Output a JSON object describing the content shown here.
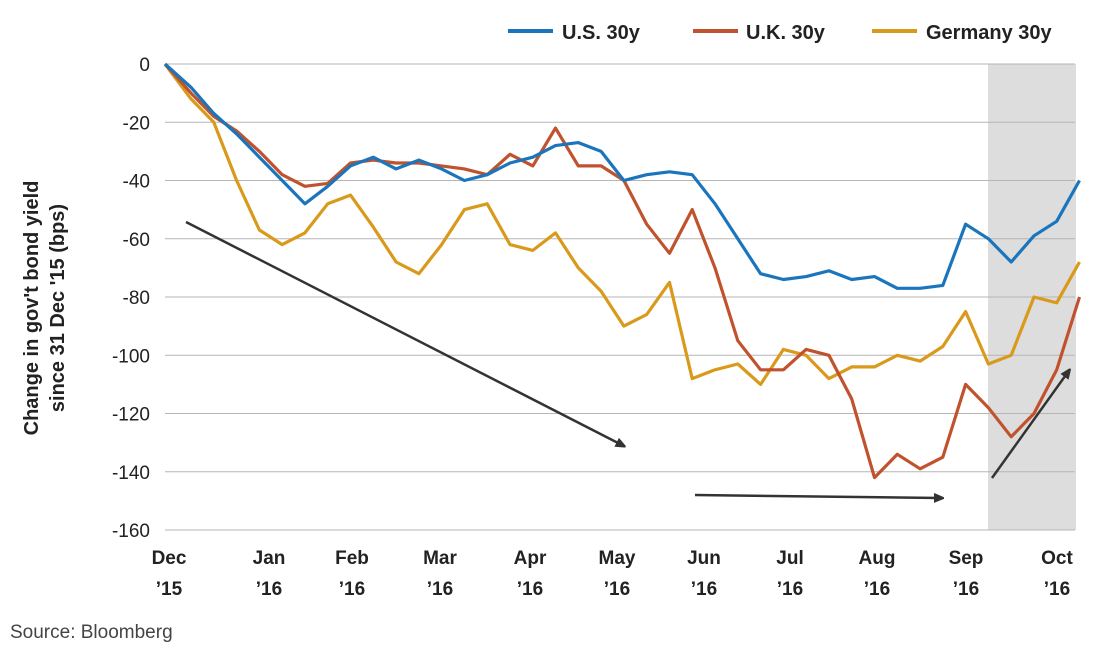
{
  "chart_data": {
    "type": "line",
    "ylabel": "Change in gov't bond yield since 31 Dec '15 (bps)",
    "ylim": [
      -160,
      0
    ],
    "yticks": [
      0,
      -20,
      -40,
      -60,
      -80,
      -100,
      -120,
      -140,
      -160
    ],
    "xticks": [
      {
        "month": "Dec",
        "year": "’15"
      },
      {
        "month": "Jan",
        "year": "’16"
      },
      {
        "month": "Feb",
        "year": "’16"
      },
      {
        "month": "Mar",
        "year": "’16"
      },
      {
        "month": "Apr",
        "year": "’16"
      },
      {
        "month": "May",
        "year": "’16"
      },
      {
        "month": "Jun",
        "year": "’16"
      },
      {
        "month": "Jul",
        "year": "’16"
      },
      {
        "month": "Aug",
        "year": "’16"
      },
      {
        "month": "Sep",
        "year": "’16"
      },
      {
        "month": "Oct",
        "year": "’16"
      }
    ],
    "x_dates": [
      "2015-12-31",
      "2016-01-08",
      "2016-01-15",
      "2016-01-22",
      "2016-01-29",
      "2016-02-05",
      "2016-02-12",
      "2016-02-19",
      "2016-02-26",
      "2016-03-04",
      "2016-03-11",
      "2016-03-18",
      "2016-03-25",
      "2016-04-01",
      "2016-04-08",
      "2016-04-15",
      "2016-04-22",
      "2016-04-29",
      "2016-05-06",
      "2016-05-13",
      "2016-05-20",
      "2016-05-27",
      "2016-06-03",
      "2016-06-10",
      "2016-06-17",
      "2016-06-24",
      "2016-07-01",
      "2016-07-08",
      "2016-07-15",
      "2016-07-22",
      "2016-07-29",
      "2016-08-05",
      "2016-08-12",
      "2016-08-19",
      "2016-08-26",
      "2016-09-02",
      "2016-09-09",
      "2016-09-16",
      "2016-09-23",
      "2016-09-30",
      "2016-10-07"
    ],
    "series": [
      {
        "name": "U.S. 30y",
        "color": "#1b75bc",
        "values": [
          0,
          -8,
          -17,
          -24,
          -32,
          -40,
          -48,
          -42,
          -35,
          -32,
          -36,
          -33,
          -36,
          -40,
          -38,
          -34,
          -32,
          -28,
          -27,
          -30,
          -40,
          -38,
          -37,
          -38,
          -48,
          -60,
          -72,
          -74,
          -73,
          -71,
          -74,
          -73,
          -77,
          -77,
          -76,
          -55,
          -60,
          -68,
          -59,
          -54,
          -40
        ]
      },
      {
        "name": "U.K. 30y",
        "color": "#c0522d",
        "values": [
          0,
          -10,
          -18,
          -23,
          -30,
          -38,
          -42,
          -41,
          -34,
          -33,
          -34,
          -34,
          -35,
          -36,
          -38,
          -31,
          -35,
          -22,
          -35,
          -35,
          -40,
          -55,
          -65,
          -50,
          -70,
          -95,
          -105,
          -105,
          -98,
          -100,
          -115,
          -142,
          -134,
          -139,
          -135,
          -110,
          -118,
          -128,
          -120,
          -105,
          -80
        ]
      },
      {
        "name": "Germany 30y",
        "color": "#d99a1b",
        "values": [
          0,
          -12,
          -20,
          -40,
          -57,
          -62,
          -58,
          -48,
          -45,
          -56,
          -68,
          -72,
          -62,
          -50,
          -48,
          -62,
          -64,
          -58,
          -70,
          -78,
          -90,
          -86,
          -75,
          -108,
          -105,
          -103,
          -110,
          -98,
          -100,
          -108,
          -104,
          -104,
          -100,
          -102,
          -97,
          -85,
          -103,
          -100,
          -80,
          -82,
          -68
        ]
      }
    ],
    "legend": "top-right",
    "grid": "horizontal",
    "shaded_region": [
      "2016-09-09",
      "2016-10-07"
    ]
  },
  "source": "Source: Bloomberg"
}
